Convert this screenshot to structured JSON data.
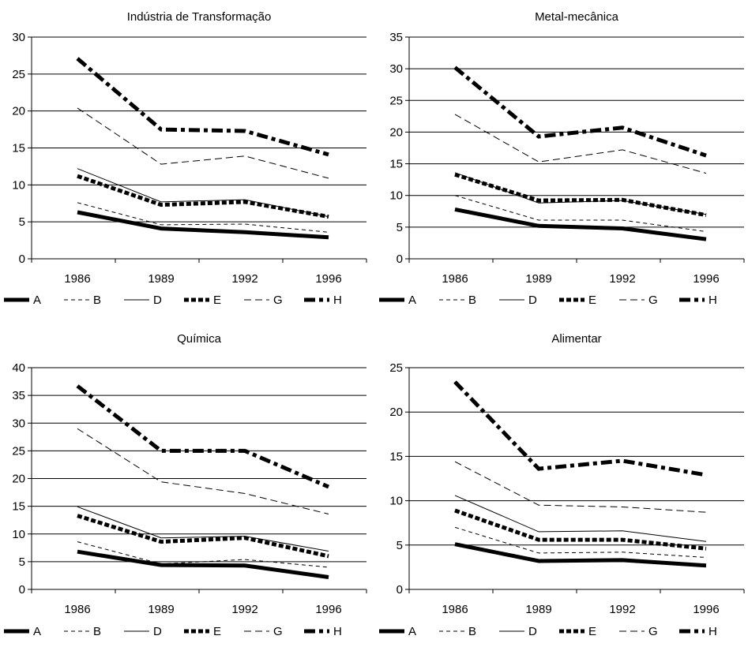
{
  "chart_data": [
    {
      "type": "line",
      "title": "Indústria de Transformação",
      "categories": [
        "1986",
        "1989",
        "1992",
        "1996"
      ],
      "ylim": [
        0,
        30
      ],
      "yticks": [
        0,
        5,
        10,
        15,
        20,
        25,
        30
      ],
      "grid": true,
      "legend": "bottom",
      "series": [
        {
          "name": "A",
          "values": [
            6.3,
            4.1,
            3.6,
            2.9
          ]
        },
        {
          "name": "B",
          "values": [
            7.6,
            4.6,
            4.7,
            3.6
          ]
        },
        {
          "name": "D",
          "values": [
            12.2,
            7.7,
            8.0,
            5.7
          ]
        },
        {
          "name": "E",
          "values": [
            11.2,
            7.3,
            7.7,
            5.7
          ]
        },
        {
          "name": "G",
          "values": [
            20.4,
            12.8,
            13.9,
            10.9
          ]
        },
        {
          "name": "H",
          "values": [
            27.1,
            17.5,
            17.3,
            14.1
          ]
        }
      ]
    },
    {
      "type": "line",
      "title": "Metal-mecânica",
      "categories": [
        "1986",
        "1989",
        "1992",
        "1996"
      ],
      "ylim": [
        0,
        35
      ],
      "yticks": [
        0,
        5,
        10,
        15,
        20,
        25,
        30,
        35
      ],
      "grid": true,
      "legend": "bottom",
      "series": [
        {
          "name": "A",
          "values": [
            7.8,
            5.2,
            4.8,
            3.1
          ]
        },
        {
          "name": "B",
          "values": [
            10.0,
            6.1,
            6.1,
            4.3
          ]
        },
        {
          "name": "D",
          "values": [
            13.6,
            8.8,
            9.2,
            7.0
          ]
        },
        {
          "name": "E",
          "values": [
            13.3,
            9.2,
            9.3,
            6.9
          ]
        },
        {
          "name": "G",
          "values": [
            22.8,
            15.3,
            17.2,
            13.5
          ]
        },
        {
          "name": "H",
          "values": [
            30.2,
            19.3,
            20.7,
            16.3
          ]
        }
      ]
    },
    {
      "type": "line",
      "title": "Química",
      "categories": [
        "1986",
        "1989",
        "1992",
        "1996"
      ],
      "ylim": [
        0,
        40
      ],
      "yticks": [
        0,
        5,
        10,
        15,
        20,
        25,
        30,
        35,
        40
      ],
      "grid": true,
      "legend": "bottom",
      "series": [
        {
          "name": "A",
          "values": [
            6.8,
            4.4,
            4.3,
            2.2
          ]
        },
        {
          "name": "B",
          "values": [
            8.6,
            4.6,
            5.4,
            4.0
          ]
        },
        {
          "name": "D",
          "values": [
            14.9,
            9.3,
            9.6,
            6.9
          ]
        },
        {
          "name": "E",
          "values": [
            13.3,
            8.6,
            9.3,
            6.0
          ]
        },
        {
          "name": "G",
          "values": [
            29.0,
            19.4,
            17.3,
            13.6
          ]
        },
        {
          "name": "H",
          "values": [
            36.7,
            25.0,
            25.0,
            18.5
          ]
        }
      ]
    },
    {
      "type": "line",
      "title": "Alimentar",
      "categories": [
        "1986",
        "1989",
        "1992",
        "1996"
      ],
      "ylim": [
        0,
        25
      ],
      "yticks": [
        0,
        5,
        10,
        15,
        20,
        25
      ],
      "grid": true,
      "legend": "bottom",
      "series": [
        {
          "name": "A",
          "values": [
            5.1,
            3.2,
            3.3,
            2.7
          ]
        },
        {
          "name": "B",
          "values": [
            7.0,
            4.1,
            4.2,
            3.6
          ]
        },
        {
          "name": "D",
          "values": [
            10.6,
            6.5,
            6.6,
            5.4
          ]
        },
        {
          "name": "E",
          "values": [
            8.9,
            5.6,
            5.6,
            4.6
          ]
        },
        {
          "name": "G",
          "values": [
            14.4,
            9.5,
            9.3,
            8.7
          ]
        },
        {
          "name": "H",
          "values": [
            23.4,
            13.6,
            14.5,
            12.9
          ]
        }
      ]
    }
  ],
  "series_styles": [
    {
      "key": "A",
      "color": "#000000",
      "stroke": "bold-solid"
    },
    {
      "key": "B",
      "color": "#000000",
      "stroke": "thin-dashed"
    },
    {
      "key": "D",
      "color": "#000000",
      "stroke": "thin-solid"
    },
    {
      "key": "E",
      "color": "#000000",
      "stroke": "bold-dotted"
    },
    {
      "key": "G",
      "color": "#000000",
      "stroke": "thin-long-dashed"
    },
    {
      "key": "H",
      "color": "#000000",
      "stroke": "bold-dash-dot"
    }
  ]
}
